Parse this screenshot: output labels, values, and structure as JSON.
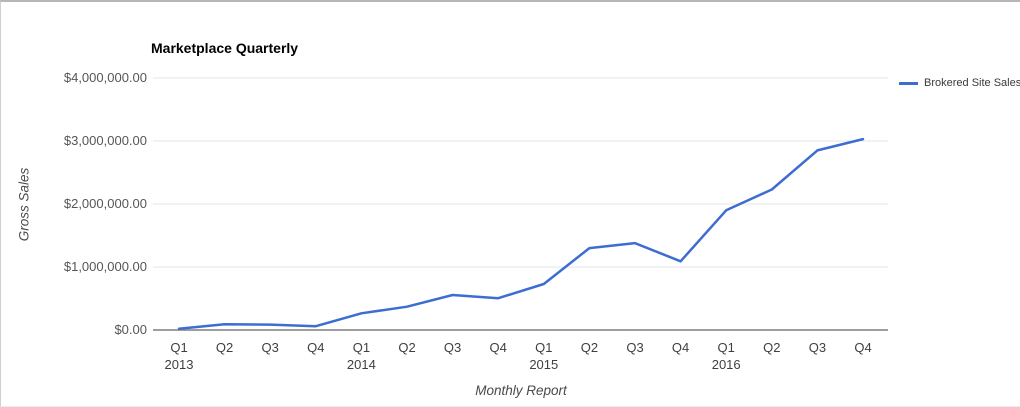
{
  "chart_data": {
    "type": "line",
    "title": "Marketplace Quarterly",
    "xlabel": "Monthly Report",
    "ylabel": "Gross Sales",
    "categories": [
      "Q1 2013",
      "Q2 2013",
      "Q3 2013",
      "Q4 2013",
      "Q1 2014",
      "Q2 2014",
      "Q3 2014",
      "Q4 2014",
      "Q1 2015",
      "Q2 2015",
      "Q3 2015",
      "Q4 2015",
      "Q1 2016",
      "Q2 2016",
      "Q3 2016",
      "Q4 2016"
    ],
    "x_ticks": [
      {
        "label": "Q1",
        "year": "2013"
      },
      {
        "label": "Q2"
      },
      {
        "label": "Q3"
      },
      {
        "label": "Q4"
      },
      {
        "label": "Q1",
        "year": "2014"
      },
      {
        "label": "Q2"
      },
      {
        "label": "Q3"
      },
      {
        "label": "Q4"
      },
      {
        "label": "Q1",
        "year": "2015"
      },
      {
        "label": "Q2"
      },
      {
        "label": "Q3"
      },
      {
        "label": "Q4"
      },
      {
        "label": "Q1",
        "year": "2016"
      },
      {
        "label": "Q2"
      },
      {
        "label": "Q3"
      },
      {
        "label": "Q4"
      }
    ],
    "series": [
      {
        "name": "Brokered Site Sales",
        "color": "#3d6dd1",
        "values": [
          20000,
          90000,
          85000,
          60000,
          265000,
          370000,
          555000,
          505000,
          730000,
          1300000,
          1380000,
          1090000,
          1900000,
          2230000,
          2850000,
          3030000
        ]
      }
    ],
    "y_ticks": [
      {
        "label": "$0.00",
        "value": 0
      },
      {
        "label": "$1,000,000.00",
        "value": 1000000
      },
      {
        "label": "$2,000,000.00",
        "value": 2000000
      },
      {
        "label": "$3,000,000.00",
        "value": 3000000
      },
      {
        "label": "$4,000,000.00",
        "value": 4000000
      }
    ],
    "ylim": [
      0,
      4000000
    ],
    "grid": true,
    "legend_position": "right",
    "colors": {
      "gridline": "#e6e6e6",
      "axis_line": "#7f7f7f",
      "title_text": "#000000",
      "tick_text": "#3f3f3f"
    }
  }
}
